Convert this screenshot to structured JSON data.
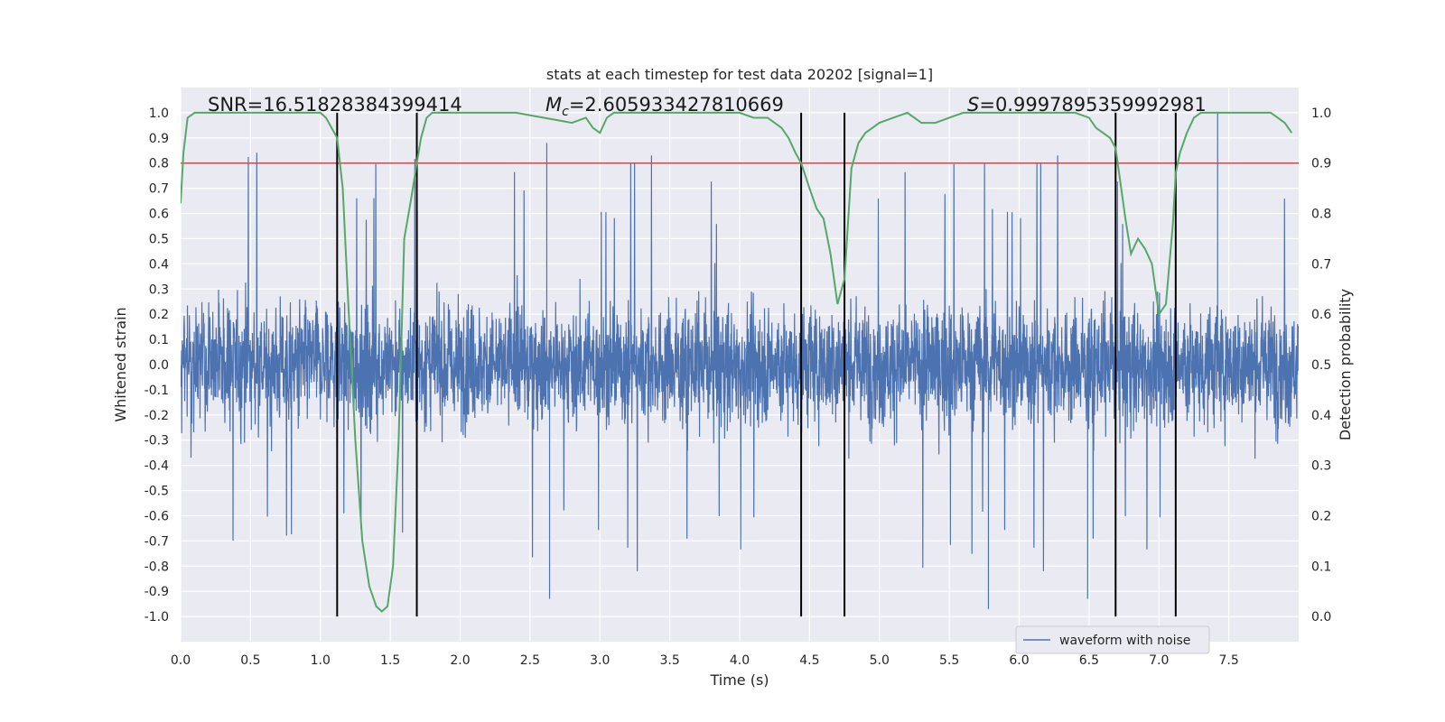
{
  "chart_data": {
    "type": "line",
    "title": "stats at each timestep for test data 20202 [signal=1]",
    "xlabel": "Time (s)",
    "ylabel": "Whitened strain",
    "y2label": "Detection probability",
    "xlim": [
      0,
      8
    ],
    "ylim": [
      -1.1,
      1.1
    ],
    "y2lim": [
      -0.05,
      1.05
    ],
    "x_ticks": [
      "0.0",
      "0.5",
      "1.0",
      "1.5",
      "2.0",
      "2.5",
      "3.0",
      "3.5",
      "4.0",
      "4.5",
      "5.0",
      "5.5",
      "6.0",
      "6.5",
      "7.0",
      "7.5"
    ],
    "y_ticks": [
      "1.0",
      "0.9",
      "0.8",
      "0.7",
      "0.6",
      "0.5",
      "0.4",
      "0.3",
      "0.2",
      "0.1",
      "0.0",
      "-0.1",
      "-0.2",
      "-0.3",
      "-0.4",
      "-0.5",
      "-0.6",
      "-0.7",
      "-0.8",
      "-0.9",
      "-1.0"
    ],
    "y2_ticks": [
      "1.0",
      "0.9",
      "0.8",
      "0.7",
      "0.6",
      "0.5",
      "0.4",
      "0.3",
      "0.2",
      "0.1",
      "0.0"
    ],
    "annotations": {
      "snr": "SNR=16.51828384399414",
      "mc_symbol": "M",
      "mc_sub": "c",
      "mc_value": "=2.605933427810669",
      "s_symbol": "S",
      "s_value": "=0.9997895359992981"
    },
    "threshold": {
      "y2": 0.9,
      "color": "#c44e52"
    },
    "vertical_lines": [
      1.12,
      1.69,
      4.44,
      4.75,
      6.69,
      7.12
    ],
    "grid": true,
    "legend": {
      "placement": "bottom-right",
      "label": "waveform with noise"
    },
    "series": [
      {
        "name": "waveform with noise",
        "color": "#4c72b0",
        "duration": 8.0,
        "samples": 4096,
        "typical_amplitude_range": [
          -0.4,
          0.4
        ],
        "peak_max": 1.0,
        "peak_min": -0.97
      },
      {
        "axis": "y2",
        "color": "#55a868",
        "x": [
          0.0,
          0.02,
          0.05,
          0.1,
          0.15,
          0.2,
          0.3,
          0.4,
          0.5,
          0.6,
          0.7,
          0.8,
          0.9,
          0.95,
          1.0,
          1.04,
          1.08,
          1.12,
          1.16,
          1.2,
          1.25,
          1.3,
          1.35,
          1.4,
          1.44,
          1.48,
          1.52,
          1.56,
          1.6,
          1.65,
          1.69,
          1.72,
          1.76,
          1.8,
          1.85,
          1.9,
          2.0,
          2.2,
          2.4,
          2.6,
          2.7,
          2.8,
          2.9,
          2.95,
          3.0,
          3.05,
          3.1,
          3.2,
          3.3,
          3.5,
          3.7,
          3.9,
          4.0,
          4.1,
          4.2,
          4.3,
          4.35,
          4.4,
          4.44,
          4.5,
          4.55,
          4.6,
          4.65,
          4.7,
          4.75,
          4.8,
          4.85,
          4.9,
          4.95,
          5.0,
          5.1,
          5.2,
          5.3,
          5.4,
          5.5,
          5.6,
          5.7,
          5.8,
          6.0,
          6.2,
          6.4,
          6.5,
          6.55,
          6.6,
          6.65,
          6.69,
          6.72,
          6.76,
          6.8,
          6.85,
          6.9,
          6.95,
          7.0,
          7.05,
          7.1,
          7.12,
          7.15,
          7.2,
          7.25,
          7.3,
          7.35,
          7.4,
          7.5,
          7.6,
          7.7,
          7.8,
          7.85,
          7.9,
          7.95
        ],
        "values": [
          0.82,
          0.92,
          0.99,
          1.0,
          1.0,
          1.0,
          1.0,
          1.0,
          1.0,
          1.0,
          1.0,
          1.0,
          1.0,
          1.0,
          1.0,
          0.99,
          0.97,
          0.95,
          0.85,
          0.62,
          0.35,
          0.15,
          0.06,
          0.02,
          0.01,
          0.02,
          0.1,
          0.35,
          0.75,
          0.83,
          0.9,
          0.95,
          0.99,
          1.0,
          1.0,
          1.0,
          1.0,
          1.0,
          1.0,
          0.99,
          0.985,
          0.98,
          0.99,
          0.97,
          0.96,
          0.99,
          1.0,
          1.0,
          1.0,
          1.0,
          1.0,
          1.0,
          1.0,
          0.99,
          0.99,
          0.97,
          0.95,
          0.92,
          0.9,
          0.85,
          0.81,
          0.79,
          0.72,
          0.62,
          0.67,
          0.89,
          0.94,
          0.96,
          0.97,
          0.98,
          0.99,
          1.0,
          0.98,
          0.98,
          0.99,
          1.0,
          1.0,
          1.0,
          1.0,
          1.0,
          1.0,
          0.99,
          0.97,
          0.96,
          0.95,
          0.93,
          0.87,
          0.79,
          0.72,
          0.75,
          0.73,
          0.7,
          0.6,
          0.62,
          0.78,
          0.88,
          0.92,
          0.96,
          0.99,
          1.0,
          1.0,
          1.0,
          1.0,
          1.0,
          1.0,
          1.0,
          0.99,
          0.98,
          0.96
        ]
      }
    ]
  }
}
